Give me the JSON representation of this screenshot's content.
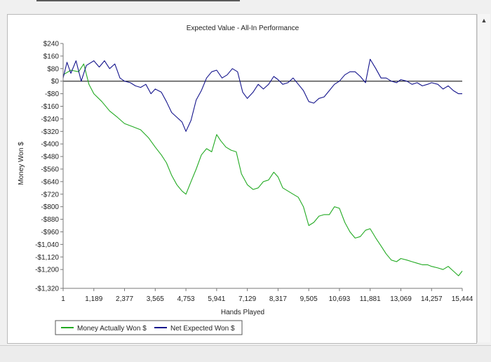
{
  "chart_data": {
    "type": "line",
    "title": "Expected Value - All-In Performance",
    "xlabel": "Hands Played",
    "ylabel": "Money Won $",
    "x_ticks": [
      1,
      1189,
      2377,
      3565,
      4753,
      5941,
      7129,
      8317,
      9505,
      10693,
      11881,
      13069,
      14257,
      15444
    ],
    "x_tick_labels": [
      "1",
      "1,189",
      "2,377",
      "3,565",
      "4,753",
      "5,941",
      "7,129",
      "8,317",
      "9,505",
      "10,693",
      "11,881",
      "13,069",
      "14,257",
      "15,444"
    ],
    "y_ticks": [
      240,
      160,
      80,
      0,
      -80,
      -160,
      -240,
      -320,
      -400,
      -480,
      -560,
      -640,
      -720,
      -800,
      -880,
      -960,
      -1040,
      -1120,
      -1200,
      -1320
    ],
    "y_tick_labels": [
      "$240",
      "$160",
      "$80",
      "$0",
      "-$80",
      "-$160",
      "-$240",
      "-$320",
      "-$400",
      "-$480",
      "-$560",
      "-$640",
      "-$720",
      "-$800",
      "-$880",
      "-$960",
      "-$1,040",
      "-$1,120",
      "-$1,200",
      "-$1,320"
    ],
    "xlim": [
      1,
      15444
    ],
    "ylim": [
      -1320,
      240
    ],
    "grid": false,
    "legend_position": "bottom-left",
    "series": [
      {
        "name": "Money Actually Won $",
        "color": "#22aa22",
        "x": [
          1,
          300,
          600,
          800,
          1000,
          1189,
          1500,
          1800,
          2100,
          2377,
          2700,
          3000,
          3300,
          3565,
          3800,
          4000,
          4200,
          4400,
          4600,
          4753,
          4950,
          5150,
          5350,
          5550,
          5750,
          5941,
          6100,
          6300,
          6500,
          6700,
          6900,
          7129,
          7350,
          7550,
          7750,
          7950,
          8150,
          8317,
          8500,
          8700,
          8900,
          9100,
          9300,
          9505,
          9700,
          9900,
          10100,
          10300,
          10500,
          10693,
          10900,
          11100,
          11300,
          11500,
          11700,
          11881,
          12100,
          12300,
          12500,
          12700,
          12900,
          13069,
          13300,
          13500,
          13700,
          13900,
          14100,
          14257,
          14500,
          14700,
          14900,
          15100,
          15300,
          15444
        ],
        "y": [
          40,
          70,
          60,
          110,
          -20,
          -80,
          -130,
          -190,
          -230,
          -270,
          -290,
          -310,
          -360,
          -420,
          -470,
          -520,
          -600,
          -660,
          -700,
          -720,
          -640,
          -560,
          -470,
          -430,
          -450,
          -340,
          -380,
          -420,
          -440,
          -450,
          -590,
          -660,
          -690,
          -680,
          -640,
          -630,
          -580,
          -610,
          -680,
          -700,
          -720,
          -740,
          -800,
          -920,
          -900,
          -860,
          -850,
          -850,
          -800,
          -810,
          -900,
          -960,
          -1000,
          -990,
          -950,
          -940,
          -1000,
          -1050,
          -1100,
          -1140,
          -1150,
          -1130,
          -1140,
          -1150,
          -1160,
          -1170,
          -1170,
          -1180,
          -1190,
          -1200,
          -1180,
          -1210,
          -1240,
          -1210
        ]
      },
      {
        "name": "Net Expected Won $",
        "color": "#14148c",
        "x": [
          1,
          150,
          300,
          500,
          700,
          900,
          1189,
          1400,
          1600,
          1800,
          2000,
          2200,
          2377,
          2600,
          2800,
          3000,
          3200,
          3400,
          3565,
          3800,
          4000,
          4200,
          4400,
          4600,
          4753,
          4950,
          5150,
          5350,
          5550,
          5750,
          5941,
          6150,
          6350,
          6550,
          6750,
          6950,
          7129,
          7350,
          7550,
          7750,
          7950,
          8150,
          8317,
          8500,
          8700,
          8900,
          9100,
          9300,
          9505,
          9700,
          9900,
          10100,
          10300,
          10500,
          10693,
          10900,
          11100,
          11300,
          11500,
          11700,
          11881,
          12100,
          12300,
          12500,
          12700,
          12900,
          13069,
          13300,
          13500,
          13700,
          13900,
          14100,
          14257,
          14500,
          14700,
          14900,
          15100,
          15300,
          15444
        ],
        "y": [
          20,
          120,
          50,
          130,
          0,
          100,
          130,
          90,
          130,
          80,
          110,
          20,
          0,
          -10,
          -30,
          -40,
          -20,
          -80,
          -50,
          -70,
          -130,
          -200,
          -230,
          -260,
          -320,
          -250,
          -120,
          -60,
          20,
          60,
          70,
          20,
          40,
          80,
          60,
          -70,
          -110,
          -70,
          -20,
          -50,
          -20,
          30,
          10,
          -20,
          -10,
          20,
          -20,
          -60,
          -130,
          -140,
          -110,
          -100,
          -60,
          -20,
          0,
          40,
          60,
          60,
          30,
          -10,
          140,
          80,
          20,
          20,
          0,
          -10,
          10,
          0,
          -20,
          -10,
          -30,
          -20,
          -10,
          -20,
          -50,
          -30,
          -60,
          -80,
          -80
        ]
      }
    ]
  }
}
